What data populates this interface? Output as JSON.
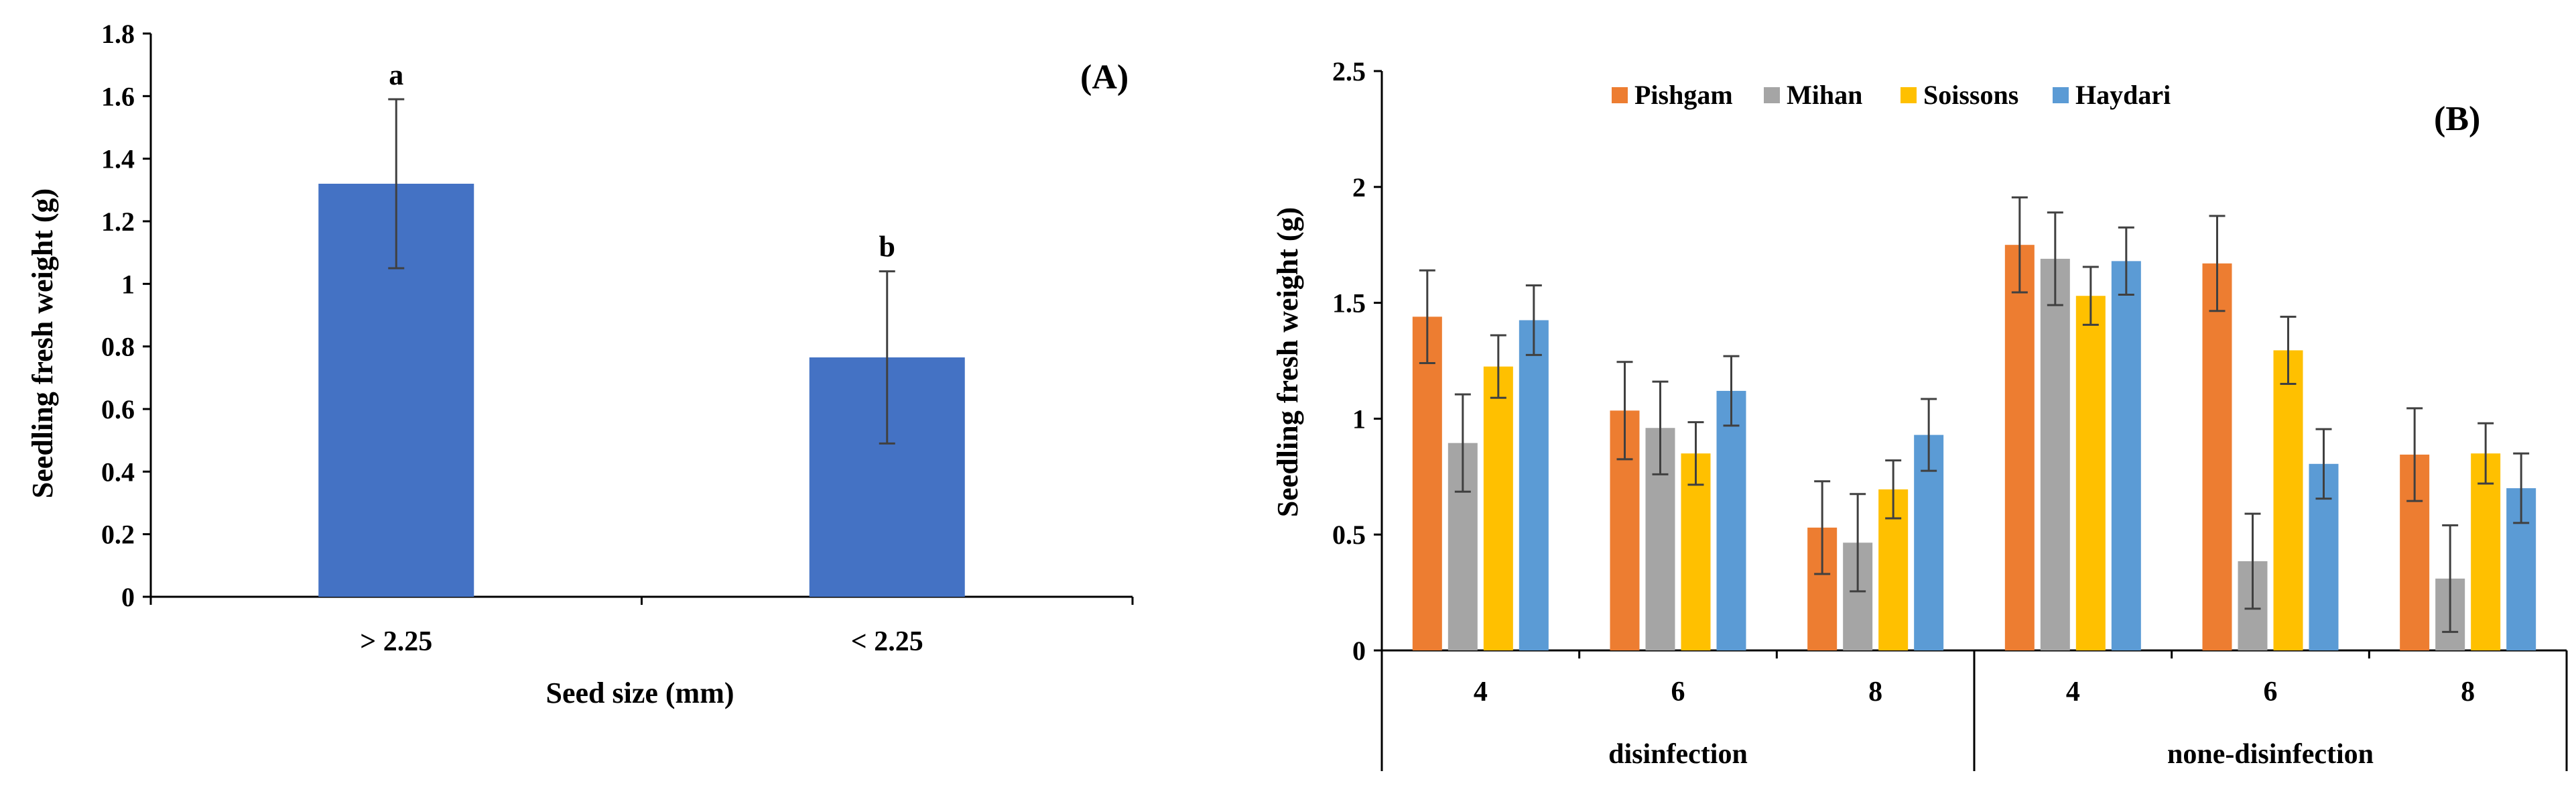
{
  "chart_data": [
    {
      "panel": "(A)",
      "type": "bar",
      "xlabel": "Seed size (mm)",
      "ylabel": "Seedling fresh weight (g)",
      "ylim": [
        0,
        1.8
      ],
      "yticks": [
        "0",
        "0.2",
        "0.4",
        "0.6",
        "0.8",
        "1",
        "1.2",
        "1.4",
        "1.6",
        "1.8"
      ],
      "categories": [
        "> 2.25",
        "< 2.25"
      ],
      "values": [
        1.32,
        0.765
      ],
      "errors": [
        0.27,
        0.275
      ],
      "letters": [
        "a",
        "b"
      ],
      "color": "#4472C4",
      "grid": false
    },
    {
      "panel": "(B)",
      "type": "bar",
      "ylabel": "Seedling fresh weight (g)",
      "ylim": [
        0,
        2.5
      ],
      "yticks": [
        "0",
        "0.5",
        "1",
        "1.5",
        "2",
        "2.5"
      ],
      "groups": [
        "disinfection",
        "none-disinfection"
      ],
      "categories": [
        "4",
        "6",
        "8",
        "4",
        "6",
        "8"
      ],
      "legend_position": "top-center",
      "grid": false,
      "series": [
        {
          "name": "Pishgam",
          "color": "#ED7D31",
          "values": [
            1.44,
            1.035,
            0.53,
            1.75,
            1.67,
            0.845
          ],
          "errors": [
            0.2,
            0.21,
            0.2,
            0.205,
            0.205,
            0.2
          ]
        },
        {
          "name": "Mihan",
          "color": "#A5A5A5",
          "values": [
            0.895,
            0.96,
            0.465,
            1.69,
            0.385,
            0.31
          ],
          "errors": [
            0.21,
            0.2,
            0.21,
            0.2,
            0.205,
            0.23
          ]
        },
        {
          "name": "Soissons",
          "color": "#FFC000",
          "values": [
            1.225,
            0.85,
            0.695,
            1.53,
            1.295,
            0.85
          ],
          "errors": [
            0.135,
            0.135,
            0.125,
            0.125,
            0.145,
            0.13
          ]
        },
        {
          "name": "Haydari",
          "color": "#5B9BD5",
          "values": [
            1.425,
            1.12,
            0.93,
            1.68,
            0.805,
            0.7
          ],
          "errors": [
            0.15,
            0.15,
            0.155,
            0.145,
            0.15,
            0.15
          ]
        }
      ]
    }
  ]
}
